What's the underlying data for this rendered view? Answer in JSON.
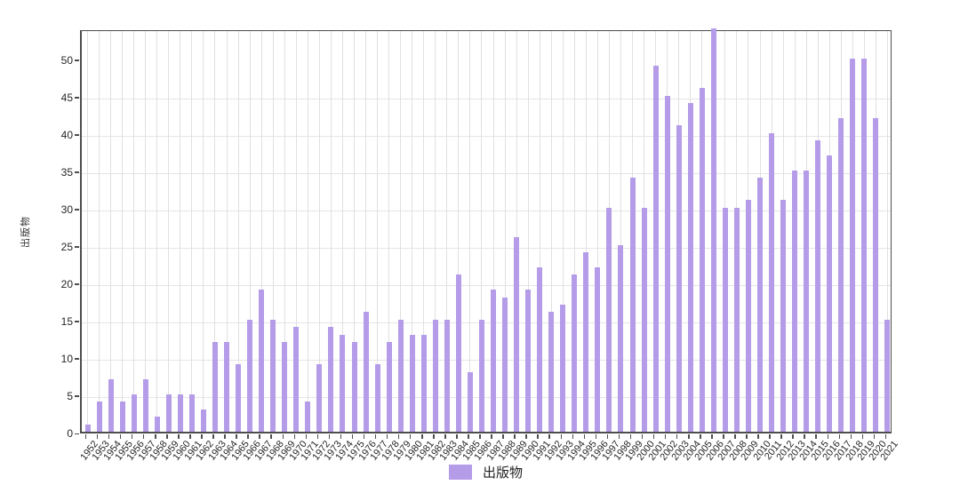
{
  "chart_data": {
    "type": "bar",
    "title": "",
    "xlabel": "",
    "ylabel": "出版物",
    "series_name": "出版物",
    "bar_color": "#b49ce8",
    "grid": true,
    "legend_position": "bottom",
    "ylim": [
      0,
      54
    ],
    "ytick_step": 5,
    "categories": [
      "1952",
      "1953",
      "1954",
      "1955",
      "1956",
      "1957",
      "1958",
      "1959",
      "1960",
      "1961",
      "1962",
      "1963",
      "1964",
      "1965",
      "1966",
      "1967",
      "1968",
      "1969",
      "1970",
      "1971",
      "1972",
      "1973",
      "1974",
      "1975",
      "1976",
      "1977",
      "1978",
      "1979",
      "1980",
      "1981",
      "1982",
      "1983",
      "1984",
      "1985",
      "1986",
      "1987",
      "1988",
      "1989",
      "1990",
      "1991",
      "1992",
      "1993",
      "1994",
      "1995",
      "1996",
      "1997",
      "1998",
      "1999",
      "2000",
      "2001",
      "2002",
      "2003",
      "2004",
      "2005",
      "2006",
      "2007",
      "2008",
      "2009",
      "2010",
      "2011",
      "2012",
      "2013",
      "2014",
      "2015",
      "2016",
      "2017",
      "2018",
      "2019",
      "2020",
      "2021"
    ],
    "values": [
      1,
      4,
      7,
      4,
      5,
      7,
      2,
      5,
      5,
      5,
      3,
      12,
      12,
      9,
      15,
      19,
      15,
      12,
      14,
      4,
      9,
      14,
      13,
      12,
      16,
      9,
      12,
      15,
      13,
      13,
      15,
      15,
      21,
      8,
      15,
      19,
      18,
      26,
      19,
      22,
      16,
      17,
      21,
      24,
      22,
      30,
      25,
      34,
      30,
      49,
      45,
      41,
      44,
      46,
      54,
      30,
      30,
      31,
      34,
      40,
      31,
      35,
      35,
      39,
      37,
      42,
      50,
      50,
      42,
      15
    ]
  },
  "y_axis": {
    "label": "出版物",
    "tick_labels": [
      "0",
      "5",
      "10",
      "15",
      "20",
      "25",
      "30",
      "35",
      "40",
      "45",
      "50"
    ]
  },
  "legend": {
    "items": [
      {
        "label": "出版物",
        "color": "#b49ce8"
      }
    ]
  },
  "colors": {
    "bar": "#b49ce8",
    "grid_vertical": "#e0e0e0",
    "grid_horizontal": "#e7e4e4",
    "spine": "#4d4d4d",
    "text": "#262626",
    "background": "#ffffff"
  }
}
